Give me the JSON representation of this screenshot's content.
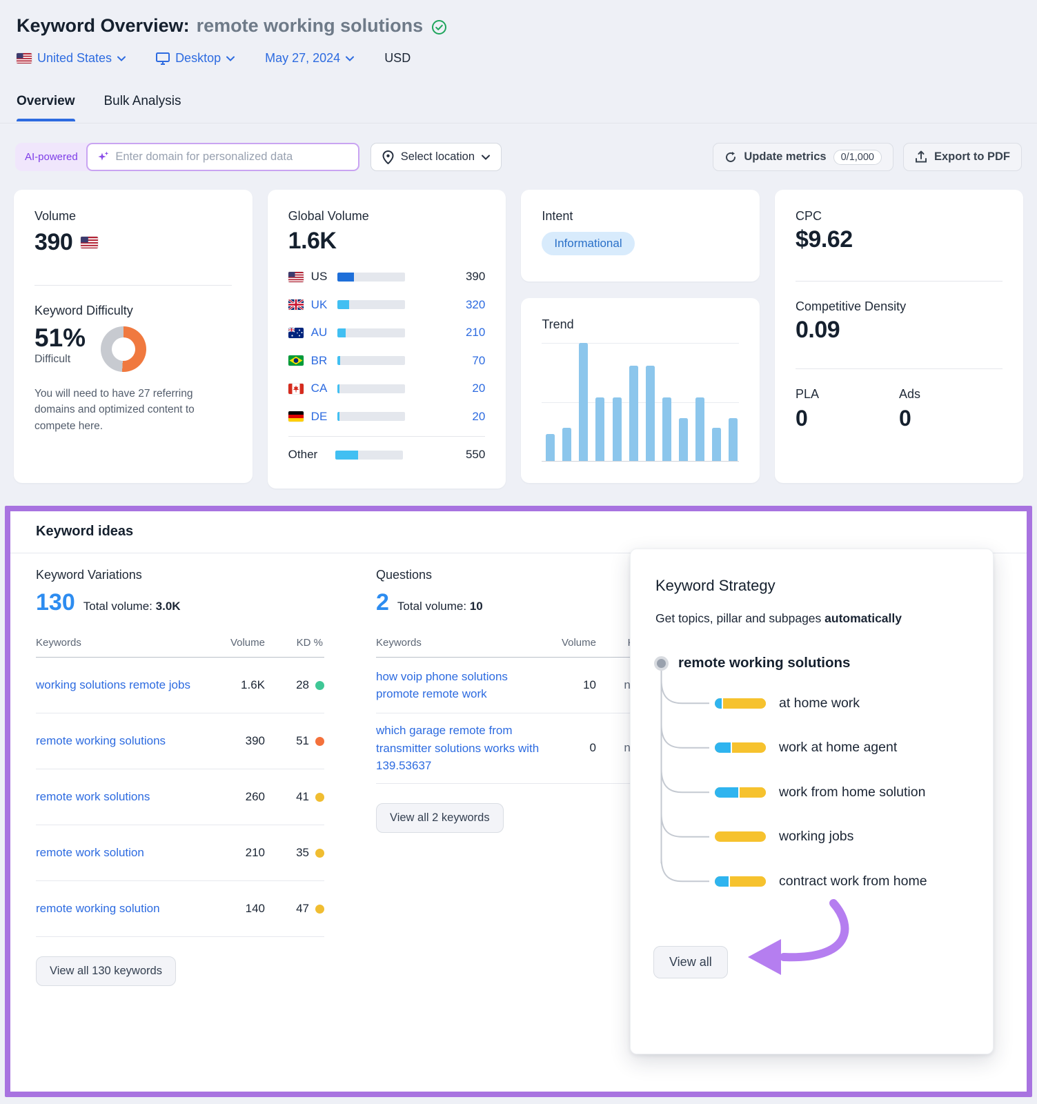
{
  "header": {
    "title": "Keyword Overview:",
    "keyword": "remote working solutions"
  },
  "filters": {
    "country": "United States",
    "device": "Desktop",
    "date": "May 27, 2024",
    "currency": "USD"
  },
  "tabs": {
    "overview": "Overview",
    "bulk": "Bulk Analysis"
  },
  "toolbar": {
    "ai_badge": "AI-powered",
    "domain_placeholder": "Enter domain for personalized data",
    "select_location": "Select location",
    "update_metrics": "Update metrics",
    "update_quota": "0/1,000",
    "export_pdf": "Export to PDF"
  },
  "cards": {
    "volume": {
      "label": "Volume",
      "value": "390"
    },
    "difficulty": {
      "label": "Keyword Difficulty",
      "value": "51%",
      "caption": "Difficult",
      "percent": 51,
      "note": "You will need to have 27 referring domains and optimized content to compete here."
    },
    "global_volume": {
      "label": "Global Volume",
      "value": "1.6K",
      "rows": [
        {
          "code": "US",
          "value": "390",
          "pct": 25,
          "flag": "us",
          "dark": true
        },
        {
          "code": "UK",
          "value": "320",
          "pct": 18,
          "flag": "uk",
          "dark": false
        },
        {
          "code": "AU",
          "value": "210",
          "pct": 13,
          "flag": "au",
          "dark": false
        },
        {
          "code": "BR",
          "value": "70",
          "pct": 4,
          "flag": "br",
          "dark": false
        },
        {
          "code": "CA",
          "value": "20",
          "pct": 3,
          "flag": "ca",
          "dark": false
        },
        {
          "code": "DE",
          "value": "20",
          "pct": 3,
          "flag": "de",
          "dark": false
        }
      ],
      "other": {
        "label": "Other",
        "value": "550",
        "pct": 34
      }
    },
    "intent": {
      "label": "Intent",
      "value": "Informational"
    },
    "trend": {
      "label": "Trend",
      "bars": [
        23,
        28,
        100,
        54,
        54,
        81,
        81,
        54,
        36,
        54,
        28,
        36
      ]
    },
    "cpc": {
      "label": "CPC",
      "value": "$9.62"
    },
    "competitive_density": {
      "label": "Competitive Density",
      "value": "0.09"
    },
    "pla": {
      "label": "PLA",
      "value": "0"
    },
    "ads": {
      "label": "Ads",
      "value": "0"
    }
  },
  "keyword_ideas": {
    "title": "Keyword ideas",
    "variations": {
      "label": "Keyword Variations",
      "count": "130",
      "total_label": "Total volume:",
      "total": "3.0K",
      "columns": {
        "keywords": "Keywords",
        "volume": "Volume",
        "kd": "KD %"
      },
      "rows": [
        {
          "keyword": "working solutions remote jobs",
          "volume": "1.6K",
          "kd": "28",
          "kd_color": "#3fc796"
        },
        {
          "keyword": "remote working solutions",
          "volume": "390",
          "kd": "51",
          "kd_color": "#f4713b"
        },
        {
          "keyword": "remote work solutions",
          "volume": "260",
          "kd": "41",
          "kd_color": "#f0bd31"
        },
        {
          "keyword": "remote work solution",
          "volume": "210",
          "kd": "35",
          "kd_color": "#f0bd31"
        },
        {
          "keyword": "remote working solution",
          "volume": "140",
          "kd": "47",
          "kd_color": "#f0bd31"
        }
      ],
      "view_all": "View all 130 keywords"
    },
    "questions": {
      "label": "Questions",
      "count": "2",
      "total_label": "Total volume:",
      "total": "10",
      "columns": {
        "keywords": "Keywords",
        "volume": "Volume",
        "kd": "KD %"
      },
      "rows": [
        {
          "keyword": "how voip phone solutions promote remote work",
          "volume": "10",
          "kd": "n/a",
          "kd_color": "#c6cbd3"
        },
        {
          "keyword": "which garage remote from transmitter solutions works with 139.53637",
          "volume": "0",
          "kd": "n/a",
          "kd_color": "#c6cbd3"
        }
      ],
      "view_all": "View all 2 keywords"
    },
    "strategy": {
      "title": "Keyword Strategy",
      "subtitle_plain": "Get topics, pillar and subpages ",
      "subtitle_bold": "automatically",
      "root": "remote working solutions",
      "children": [
        {
          "label": "at home work",
          "blue_pct": 16
        },
        {
          "label": "work at home agent",
          "blue_pct": 34
        },
        {
          "label": "work from home solution",
          "blue_pct": 48
        },
        {
          "label": "working jobs",
          "blue_pct": 0
        },
        {
          "label": "contract work from home",
          "blue_pct": 30
        }
      ],
      "view_all": "View all"
    }
  },
  "colors": {
    "accent_purple": "#a873e0",
    "link_blue": "#2d6be0",
    "count_blue": "#2d8cf0",
    "trend_bar": "#8cc6ec",
    "kd_green": "#3fc796",
    "kd_orange": "#f4713b",
    "kd_yellow": "#f0bd31",
    "strategy_blue": "#2fb4ef",
    "strategy_yellow": "#f6c22e"
  }
}
